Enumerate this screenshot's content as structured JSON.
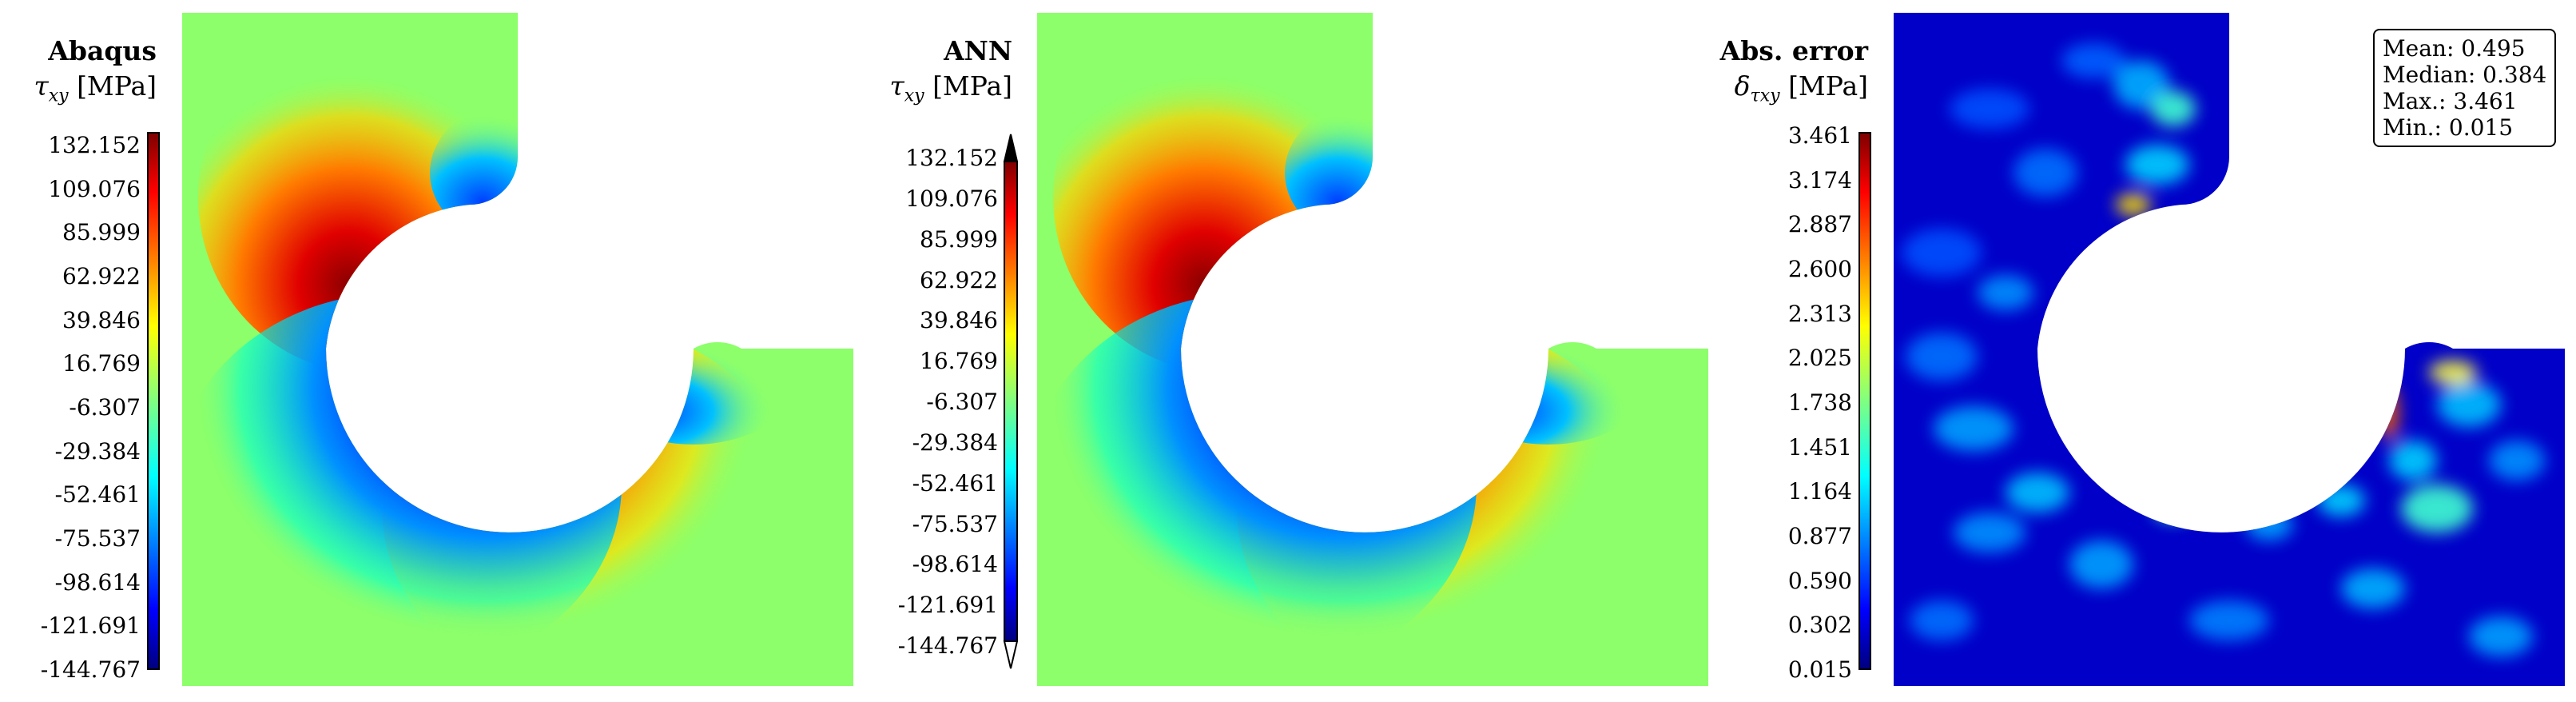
{
  "panels": [
    {
      "title": "Abaqus",
      "quantity_symbol": "τ",
      "quantity_subscript": "xy",
      "unit": "[MPa]",
      "colormap": "jet",
      "colorbar_ticks": [
        "132.152",
        "109.076",
        "85.999",
        "62.922",
        "39.846",
        "16.769",
        "-6.307",
        "-29.384",
        "-52.461",
        "-75.537",
        "-98.614",
        "-121.691",
        "-144.767"
      ]
    },
    {
      "title": "ANN",
      "quantity_symbol": "τ",
      "quantity_subscript": "xy",
      "unit": "[MPa]",
      "colormap": "jet",
      "colorbar_extend": "both",
      "colorbar_ticks": [
        "132.152",
        "109.076",
        "85.999",
        "62.922",
        "39.846",
        "16.769",
        "-6.307",
        "-29.384",
        "-52.461",
        "-75.537",
        "-98.614",
        "-121.691",
        "-144.767"
      ]
    },
    {
      "title": "Abs. error",
      "quantity_symbol": "δ",
      "quantity_subscript": "τxy",
      "unit": "[MPa]",
      "colormap": "jet",
      "colorbar_ticks": [
        "3.461",
        "3.174",
        "2.887",
        "2.600",
        "2.313",
        "2.025",
        "1.738",
        "1.451",
        "1.164",
        "0.877",
        "0.590",
        "0.302",
        "0.015"
      ],
      "stats": [
        "Mean: 0.495",
        "Median: 0.384",
        "Max.: 3.461",
        "Min.: 0.015"
      ]
    }
  ],
  "colors": {
    "jet_top": "#7f0000",
    "jet_red": "#ff0000",
    "jet_yellow": "#ffff00",
    "jet_green": "#80ff80",
    "jet_cyan": "#00ffff",
    "jet_blue": "#0000ff",
    "jet_bottom": "#00007f"
  }
}
